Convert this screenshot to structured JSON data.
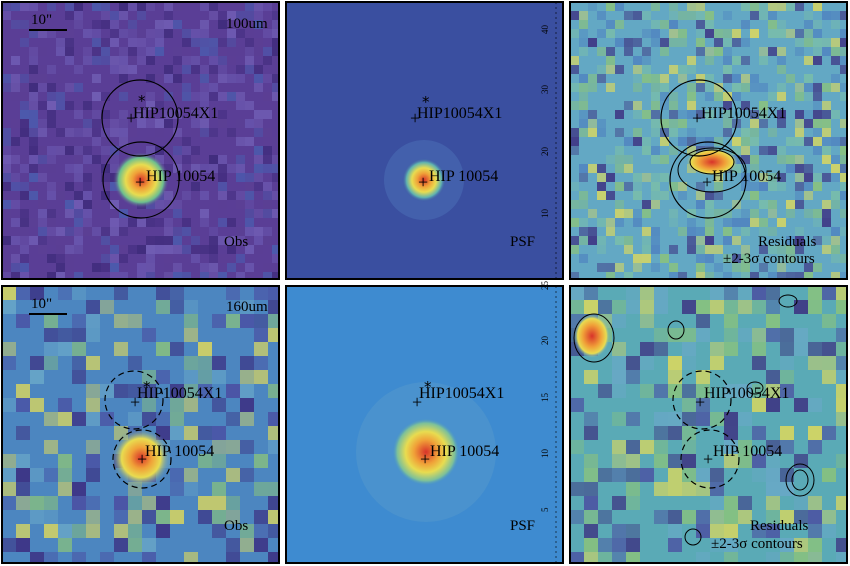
{
  "bands": [
    {
      "wavelength": "100um",
      "scalebar": "10\""
    },
    {
      "wavelength": "160um",
      "scalebar": "10\""
    }
  ],
  "columns": [
    "Obs",
    "PSF",
    "Residuals"
  ],
  "residual_caption": [
    "Residuals",
    "±2-3σ contours"
  ],
  "sources": {
    "primary": "HIP 10054",
    "companion": "HIP10054X1"
  },
  "axis_ticks": {
    "row1": [
      "40",
      "30",
      "20",
      "10"
    ],
    "row2": [
      "25",
      "20",
      "15",
      "10",
      "5"
    ]
  },
  "colors": {
    "obs100_bg": "#5a3e96",
    "psf100_bg": "#3a4fa0",
    "res100_bg": "#63a8c4",
    "obs160_bg": "#4c86c0",
    "psf160_bg": "#3e8bd0",
    "res160_bg": "#5aaab6",
    "peak_red": "#d8332a",
    "peak_orange": "#f0a038",
    "peak_yellow": "#e8dc50"
  }
}
